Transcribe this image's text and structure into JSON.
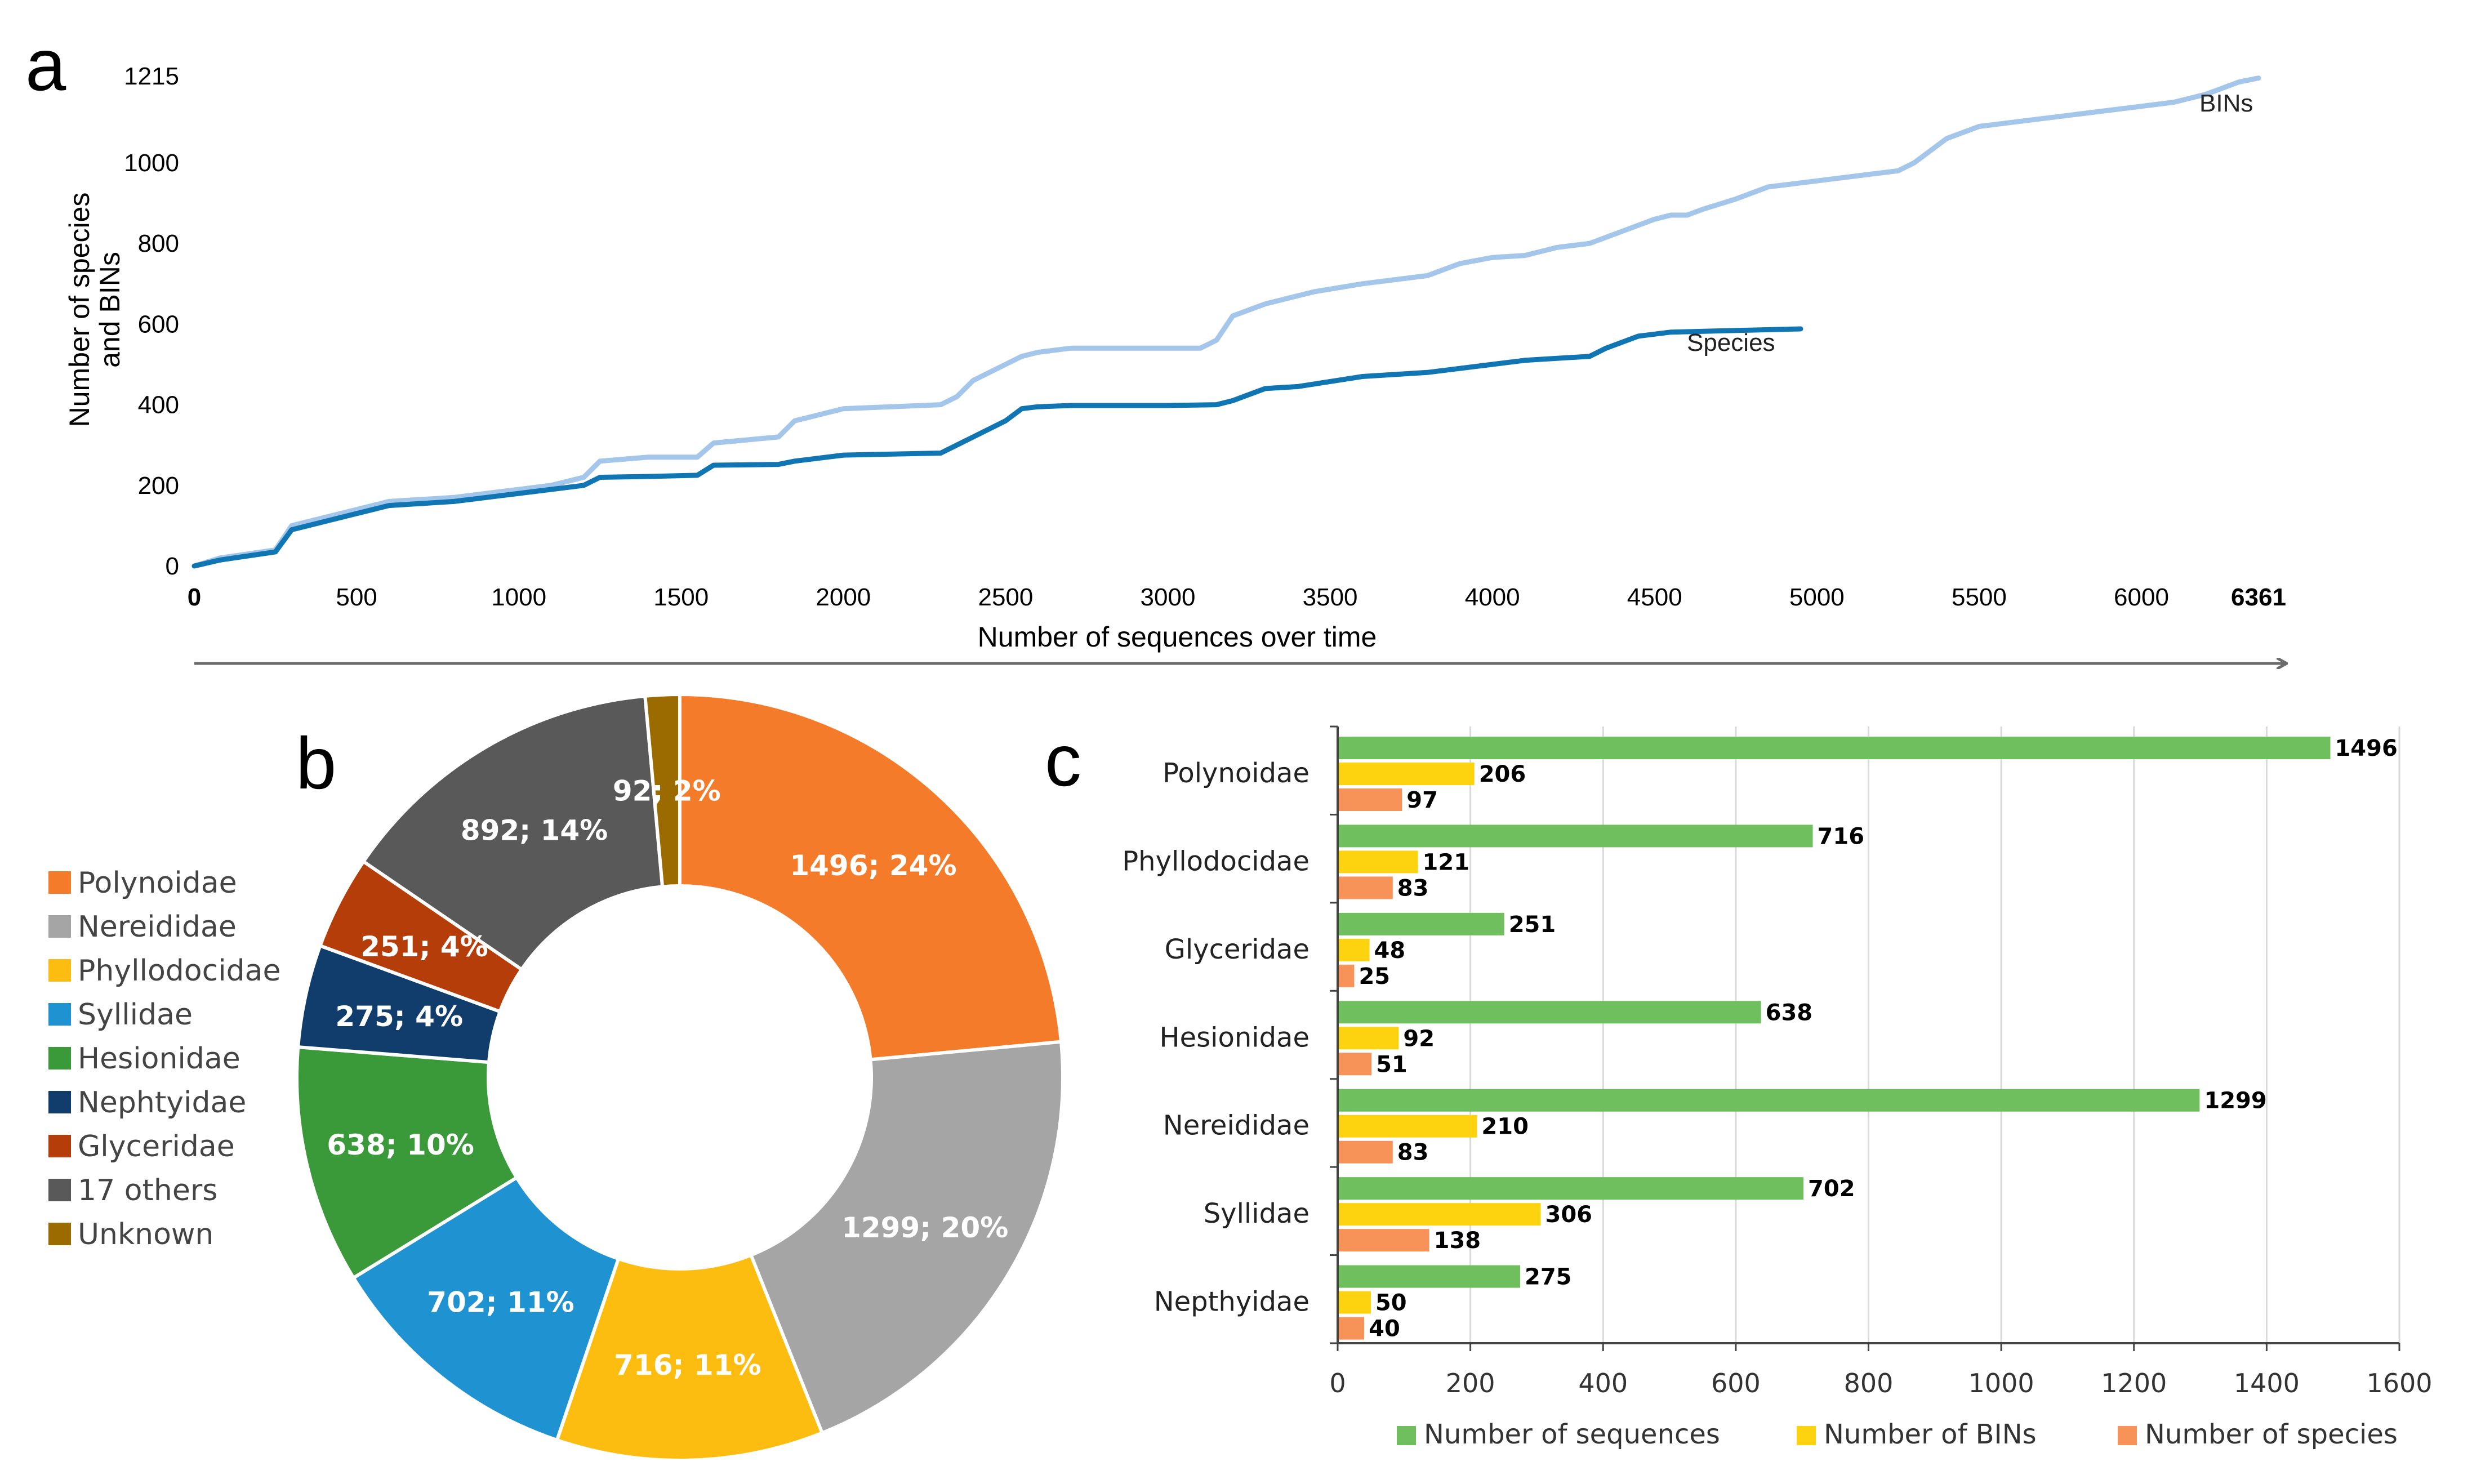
{
  "figure": {
    "panel_letters": {
      "a": "a",
      "b": "b",
      "c": "c"
    }
  },
  "chart_data": [
    {
      "panel": "a",
      "type": "line",
      "title": "",
      "xlabel": "Number of sequences over time",
      "ylabel_line1": "Number of species",
      "ylabel_line2": "and BINs",
      "xlim": [
        0,
        6361
      ],
      "ylim": [
        0,
        1215
      ],
      "x_ticks": [
        "0",
        "500",
        "1000",
        "1500",
        "2000",
        "2500",
        "3000",
        "3500",
        "4000",
        "4500",
        "5000",
        "5500",
        "6000",
        "6361"
      ],
      "x_tick_values": [
        0,
        500,
        1000,
        1500,
        2000,
        2500,
        3000,
        3500,
        4000,
        4500,
        5000,
        5500,
        6000,
        6361
      ],
      "y_ticks": [
        "0",
        "200",
        "400",
        "600",
        "800",
        "1000",
        "1215"
      ],
      "y_tick_values": [
        0,
        200,
        400,
        600,
        800,
        1000,
        1215
      ],
      "series": [
        {
          "name": "BINs",
          "color": "#a4c6ea",
          "x": [
            0,
            80,
            250,
            300,
            500,
            600,
            800,
            900,
            1000,
            1100,
            1200,
            1250,
            1400,
            1550,
            1600,
            1800,
            1850,
            2000,
            2300,
            2350,
            2400,
            2500,
            2550,
            2600,
            2700,
            3000,
            3100,
            3150,
            3200,
            3300,
            3450,
            3600,
            3800,
            3900,
            4000,
            4100,
            4200,
            4300,
            4400,
            4500,
            4550,
            4600,
            4650,
            4750,
            4850,
            5000,
            5150,
            5250,
            5300,
            5400,
            5500,
            5600,
            5700,
            5800,
            5900,
            6000,
            6100,
            6200,
            6300,
            6361
          ],
          "y": [
            0,
            20,
            40,
            100,
            140,
            160,
            170,
            180,
            190,
            200,
            220,
            260,
            270,
            270,
            305,
            320,
            360,
            390,
            400,
            420,
            460,
            500,
            520,
            530,
            540,
            540,
            540,
            560,
            620,
            650,
            680,
            700,
            720,
            750,
            765,
            770,
            790,
            800,
            830,
            860,
            870,
            870,
            885,
            910,
            940,
            955,
            970,
            980,
            1000,
            1060,
            1090,
            1100,
            1110,
            1120,
            1130,
            1140,
            1150,
            1170,
            1200,
            1210
          ]
        },
        {
          "name": "Species",
          "color": "#0f75b3",
          "x": [
            0,
            80,
            250,
            300,
            500,
            600,
            800,
            900,
            1000,
            1100,
            1200,
            1250,
            1400,
            1550,
            1600,
            1800,
            1850,
            2000,
            2300,
            2350,
            2400,
            2500,
            2550,
            2600,
            2700,
            3000,
            3150,
            3200,
            3300,
            3400,
            3600,
            3800,
            4000,
            4100,
            4300,
            4350,
            4450,
            4550,
            4800,
            4950
          ],
          "y": [
            0,
            15,
            35,
            90,
            130,
            150,
            160,
            170,
            180,
            190,
            200,
            220,
            222,
            225,
            250,
            252,
            260,
            275,
            280,
            300,
            320,
            360,
            390,
            395,
            398,
            398,
            400,
            410,
            440,
            445,
            470,
            480,
            500,
            510,
            520,
            540,
            570,
            580,
            585,
            588
          ]
        }
      ]
    },
    {
      "panel": "b",
      "type": "pie",
      "title": "",
      "slices": [
        {
          "name": "Polynoidae",
          "value": 1496,
          "label": "1496; 24%",
          "color": "#f47b2a"
        },
        {
          "name": "Nereididae",
          "value": 1299,
          "label": "1299; 20%",
          "color": "#a5a5a5"
        },
        {
          "name": "Phyllodocidae",
          "value": 716,
          "label": "716; 11%",
          "color": "#fdbd10"
        },
        {
          "name": "Syllidae",
          "value": 702,
          "label": "702; 11%",
          "color": "#1f93d1"
        },
        {
          "name": "Hesionidae",
          "value": 638,
          "label": "638; 10%",
          "color": "#3a9a3a"
        },
        {
          "name": "Nephtyidae",
          "value": 275,
          "label": "275; 4%",
          "color": "#103d6c"
        },
        {
          "name": "Glyceridae",
          "value": 251,
          "label": "251; 4%",
          "color": "#b53d0a"
        },
        {
          "name": "17 others",
          "value": 892,
          "label": "892; 14%",
          "color": "#595959"
        },
        {
          "name": "Unknown",
          "value": 92,
          "label": "92; 2%",
          "color": "#9c6b00"
        }
      ]
    },
    {
      "panel": "c",
      "type": "bar",
      "orientation": "horizontal",
      "title": "",
      "xlim": [
        0,
        1600
      ],
      "x_ticks": [
        "0",
        "200",
        "400",
        "600",
        "800",
        "1000",
        "1200",
        "1400",
        "1600"
      ],
      "x_tick_values": [
        0,
        200,
        400,
        600,
        800,
        1000,
        1200,
        1400,
        1600
      ],
      "categories": [
        "Polynoidae",
        "Phyllodocidae",
        "Glyceridae",
        "Hesionidae",
        "Nereididae",
        "Syllidae",
        "Nepthyidae"
      ],
      "series": [
        {
          "name": "Number of sequences",
          "color": "#70bf5e",
          "values": [
            1496,
            716,
            251,
            638,
            1299,
            702,
            275
          ]
        },
        {
          "name": "Number of BINs",
          "color": "#fdd20e",
          "values": [
            206,
            121,
            48,
            92,
            210,
            306,
            50
          ]
        },
        {
          "name": "Number of species",
          "color": "#f79358",
          "values": [
            97,
            83,
            25,
            51,
            83,
            138,
            40
          ]
        }
      ],
      "legend_position": "bottom"
    }
  ]
}
